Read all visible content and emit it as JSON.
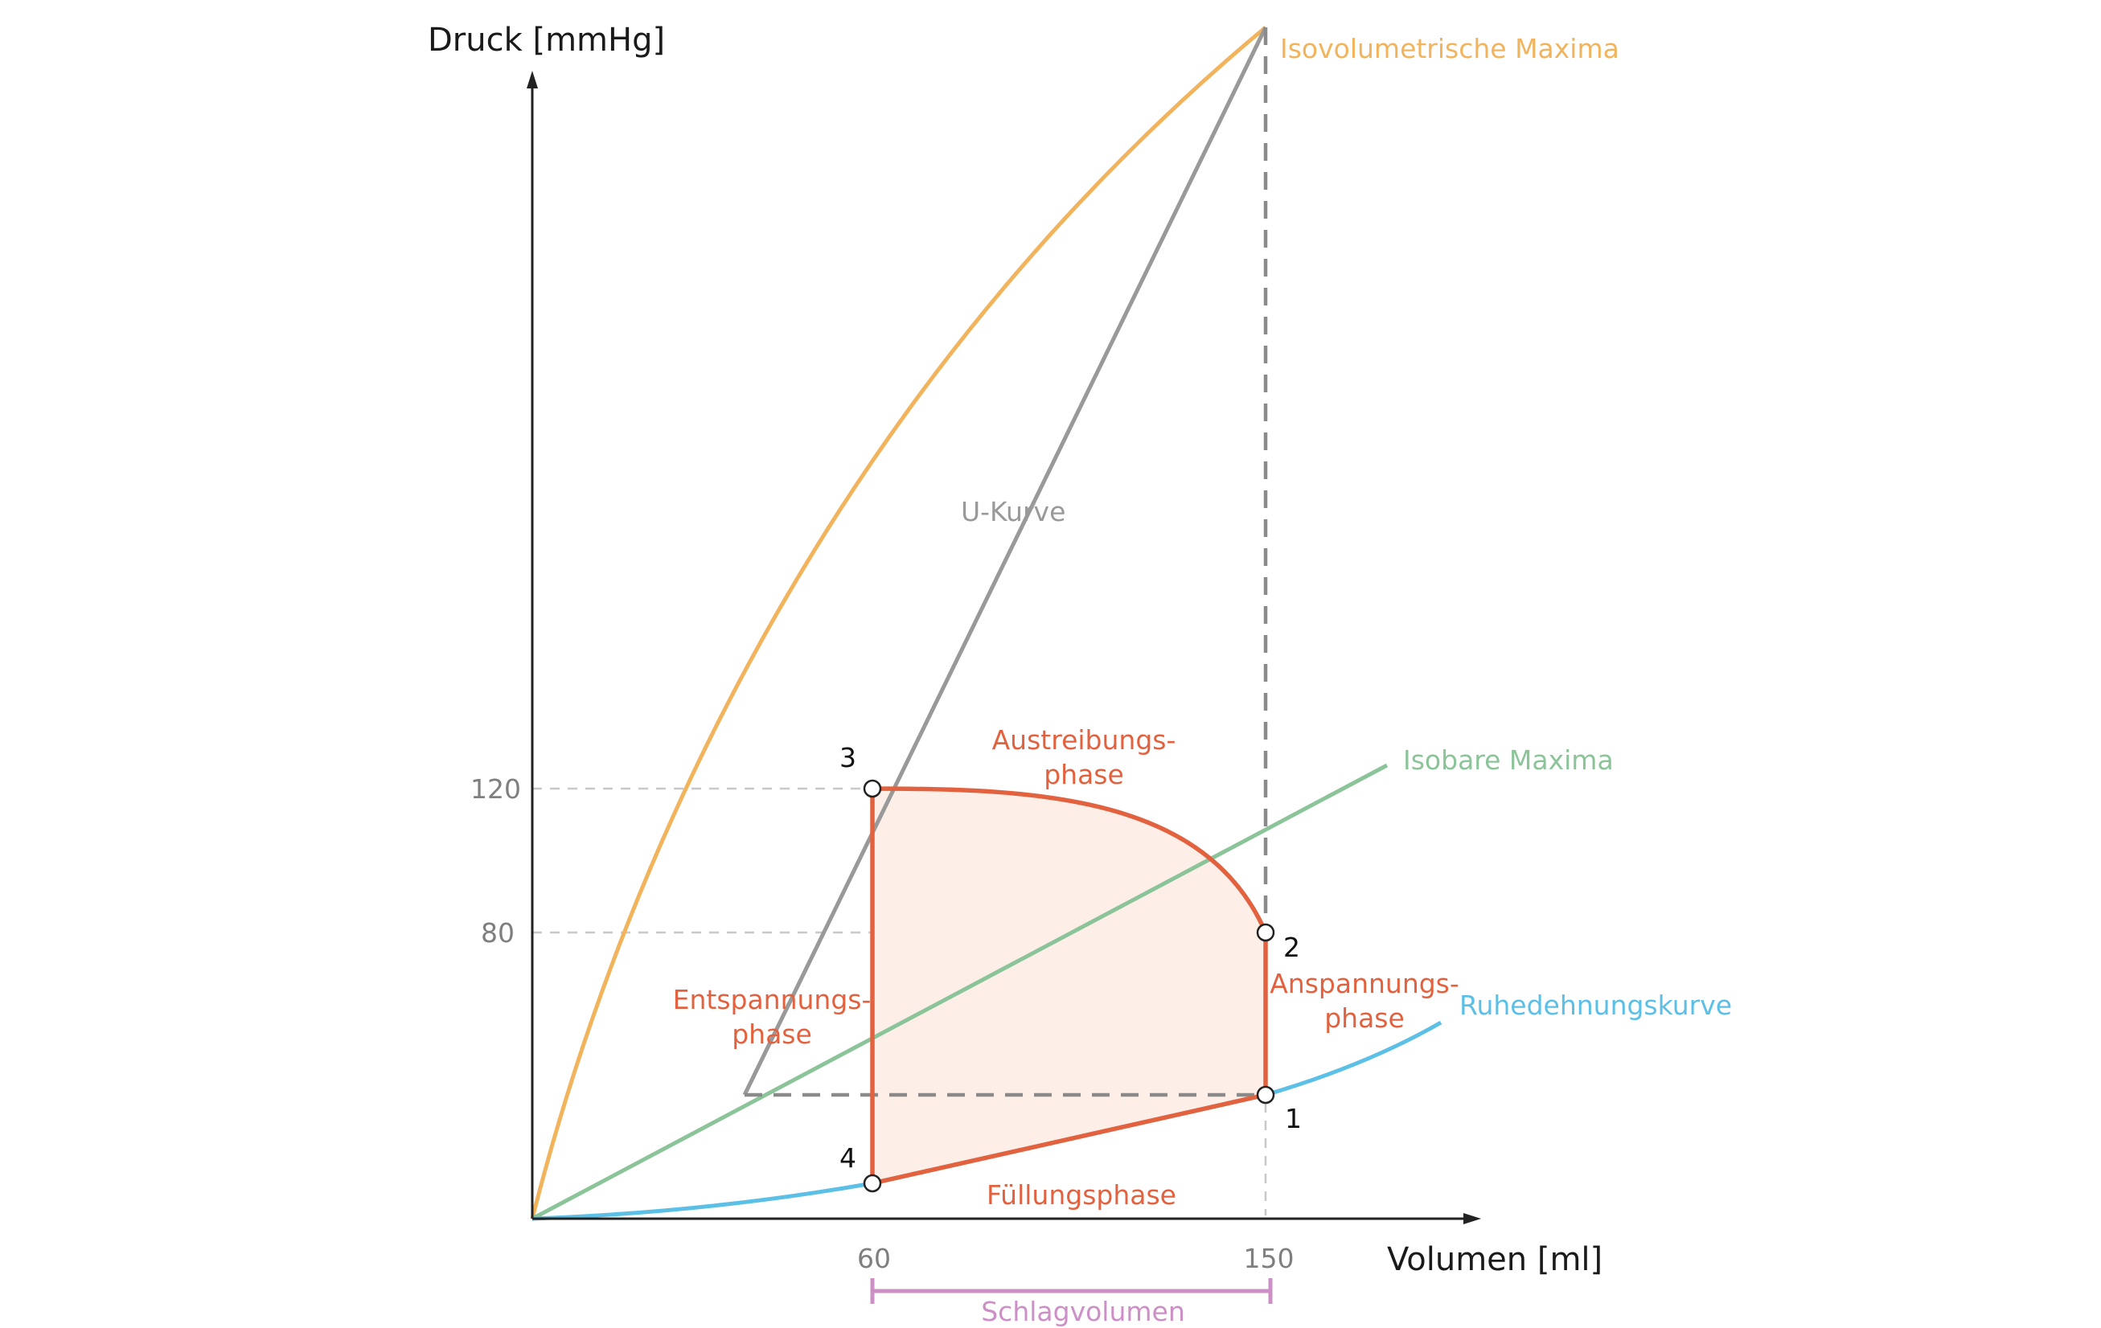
{
  "axes": {
    "y_title": "Druck [mmHg]",
    "x_title": "Volumen [ml]",
    "y_ticks": [
      "120",
      "80"
    ],
    "x_ticks": [
      "60",
      "150"
    ]
  },
  "curves": {
    "isovolumetric": "Isovolumetrische Maxima",
    "u_curve": "U-Kurve",
    "isobaric": "Isobare Maxima",
    "rest": "Ruhedehnungskurve"
  },
  "points": [
    "1",
    "2",
    "3",
    "4"
  ],
  "phases": {
    "ejection": [
      "Austreibungs-",
      "phase"
    ],
    "isovolumetric_contraction": [
      "Anspannungs-",
      "phase"
    ],
    "isovolumetric_relaxation": [
      "Entspannungs-",
      "phase"
    ],
    "filling": "Füllungsphase"
  },
  "stroke_volume": "Schlagvolumen",
  "colors": {
    "loop": "#e2623f",
    "loop_fill": "#fdefe8",
    "isovolumetric": "#f2b35d",
    "u_curve": "#999999",
    "isobaric": "#8cc49a",
    "rest": "#5bbfe6",
    "stroke_volume": "#cc8fc6",
    "axis": "#222222",
    "guide": "#c8c8c8",
    "dashed_dark": "#8a8a8a"
  }
}
